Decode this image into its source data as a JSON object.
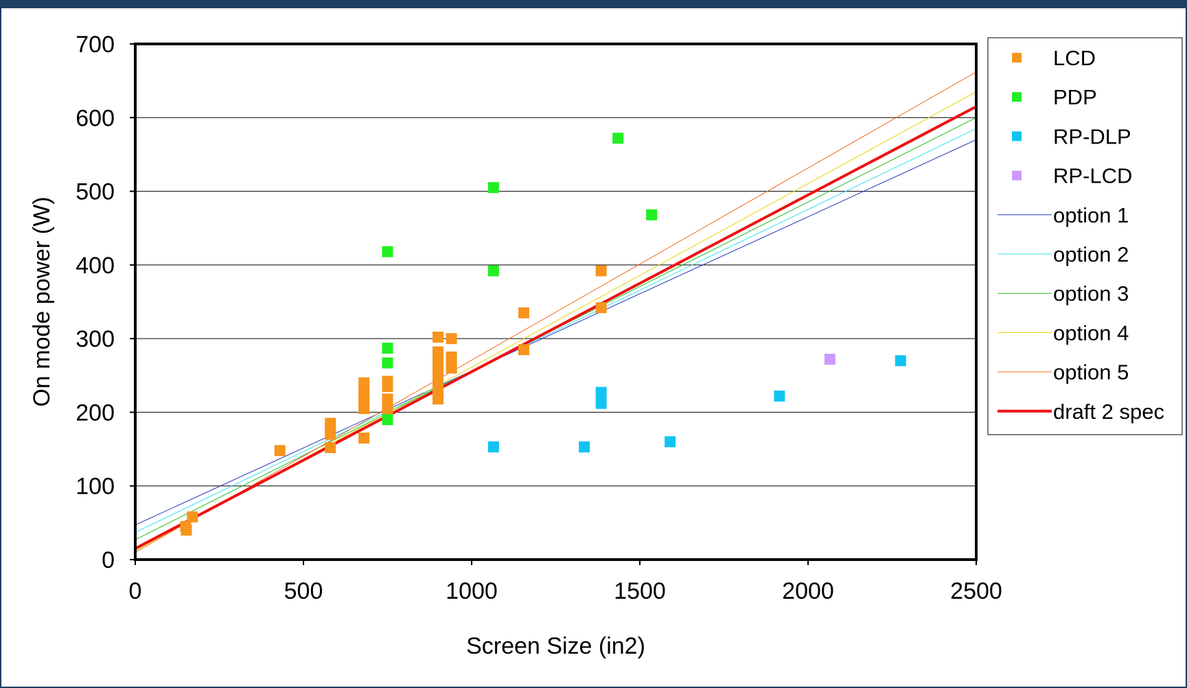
{
  "chart_data": {
    "type": "scatter",
    "title": "",
    "xlabel": "Screen Size (in2)",
    "ylabel": "On mode power (W)",
    "xlim": [
      0,
      2500
    ],
    "ylim": [
      0,
      700
    ],
    "x_ticks": [
      0,
      500,
      1000,
      1500,
      2000,
      2500
    ],
    "y_ticks": [
      0,
      100,
      200,
      300,
      400,
      500,
      600,
      700
    ],
    "grid": "horizontal major gridlines",
    "legend_position": "right",
    "series": [
      {
        "name": "LCD",
        "kind": "points",
        "color": "#f7941d",
        "points": [
          [
            150,
            45
          ],
          [
            152,
            40
          ],
          [
            170,
            58
          ],
          [
            430,
            148
          ],
          [
            580,
            185
          ],
          [
            580,
            178
          ],
          [
            580,
            170
          ],
          [
            580,
            152
          ],
          [
            680,
            240
          ],
          [
            680,
            232
          ],
          [
            680,
            225
          ],
          [
            680,
            218
          ],
          [
            680,
            210
          ],
          [
            680,
            205
          ],
          [
            680,
            165
          ],
          [
            750,
            242
          ],
          [
            750,
            235
          ],
          [
            750,
            218
          ],
          [
            750,
            210
          ],
          [
            750,
            202
          ],
          [
            900,
            302
          ],
          [
            900,
            282
          ],
          [
            900,
            270
          ],
          [
            900,
            262
          ],
          [
            900,
            255
          ],
          [
            900,
            248
          ],
          [
            900,
            240
          ],
          [
            900,
            232
          ],
          [
            900,
            225
          ],
          [
            900,
            218
          ],
          [
            940,
            300
          ],
          [
            940,
            275
          ],
          [
            940,
            268
          ],
          [
            940,
            260
          ],
          [
            1155,
            335
          ],
          [
            1155,
            285
          ],
          [
            1385,
            392
          ],
          [
            1385,
            342
          ]
        ]
      },
      {
        "name": "PDP",
        "kind": "points",
        "color": "#22ee22",
        "points": [
          [
            750,
            418
          ],
          [
            750,
            287
          ],
          [
            750,
            267
          ],
          [
            750,
            190
          ],
          [
            1065,
            505
          ],
          [
            1065,
            392
          ],
          [
            1435,
            572
          ],
          [
            1535,
            468
          ]
        ]
      },
      {
        "name": "RP-DLP",
        "kind": "points",
        "color": "#11c4f1",
        "points": [
          [
            1065,
            153
          ],
          [
            1335,
            153
          ],
          [
            1385,
            227
          ],
          [
            1385,
            212
          ],
          [
            1590,
            160
          ],
          [
            1915,
            222
          ],
          [
            2275,
            270
          ]
        ]
      },
      {
        "name": "RP-LCD",
        "kind": "points",
        "color": "#cc99ff",
        "points": [
          [
            2065,
            272
          ]
        ]
      },
      {
        "name": "option 1",
        "kind": "line",
        "color": "#2233bb",
        "width": 1,
        "line": [
          [
            0,
            47
          ],
          [
            2500,
            570
          ]
        ]
      },
      {
        "name": "option 2",
        "kind": "line",
        "color": "#33e0f0",
        "width": 1,
        "line": [
          [
            0,
            37
          ],
          [
            2500,
            585
          ]
        ]
      },
      {
        "name": "option 3",
        "kind": "line",
        "color": "#22bb22",
        "width": 1,
        "line": [
          [
            0,
            27
          ],
          [
            2500,
            600
          ]
        ]
      },
      {
        "name": "option 4",
        "kind": "line",
        "color": "#e8d200",
        "width": 1,
        "line": [
          [
            0,
            12
          ],
          [
            2500,
            635
          ]
        ]
      },
      {
        "name": "option 5",
        "kind": "line",
        "color": "#f26b1d",
        "width": 1,
        "line": [
          [
            0,
            10
          ],
          [
            2500,
            662
          ]
        ]
      },
      {
        "name": "draft 2 spec",
        "kind": "line",
        "color": "#ee1111",
        "width": 4,
        "line": [
          [
            0,
            15
          ],
          [
            2500,
            615
          ]
        ]
      }
    ]
  }
}
